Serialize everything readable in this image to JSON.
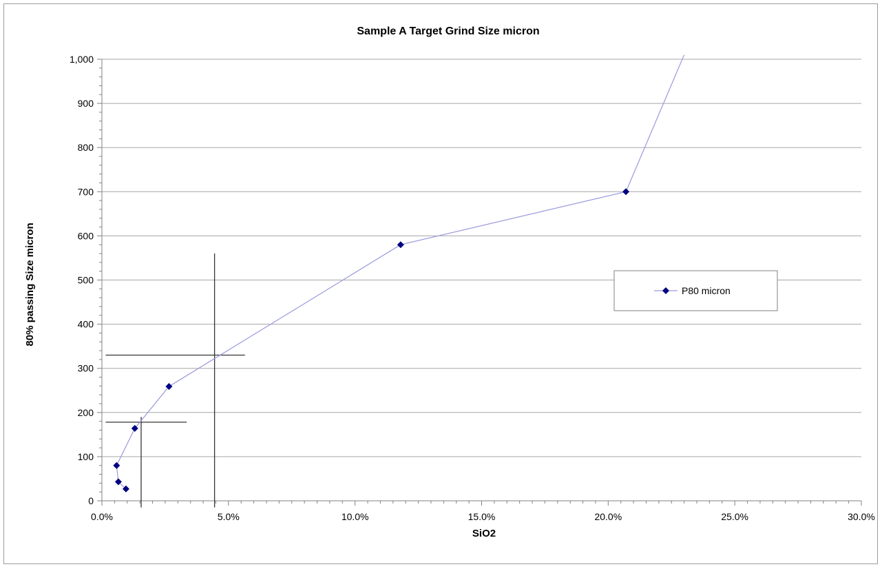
{
  "chart_data": {
    "type": "line",
    "title": "Sample A Target Grind Size micron",
    "xlabel": "SiO2",
    "ylabel": "80% passing Size micron",
    "xlim": [
      0,
      0.3
    ],
    "ylim": [
      0,
      1000
    ],
    "x_ticks": [
      0,
      0.05,
      0.1,
      0.15,
      0.2,
      0.25,
      0.3
    ],
    "x_tick_labels": [
      "0.0%",
      "5.0%",
      "10.0%",
      "15.0%",
      "20.0%",
      "25.0%",
      "30.0%"
    ],
    "y_ticks": [
      0,
      100,
      200,
      300,
      400,
      500,
      600,
      700,
      800,
      900,
      1000
    ],
    "y_tick_labels": [
      "0",
      "100",
      "200",
      "300",
      "400",
      "500",
      "600",
      "700",
      "800",
      "900",
      "1,000"
    ],
    "grid": "horizontal",
    "legend_position": "right",
    "series": [
      {
        "name": "P80 micron",
        "color": "#9999dd",
        "marker_color": "#000080",
        "marker": "diamond",
        "points": [
          {
            "x": 0.0095,
            "y": 27
          },
          {
            "x": 0.0065,
            "y": 43
          },
          {
            "x": 0.0058,
            "y": 80
          },
          {
            "x": 0.013,
            "y": 164
          },
          {
            "x": 0.0265,
            "y": 259
          },
          {
            "x": 0.118,
            "y": 580
          },
          {
            "x": 0.207,
            "y": 700
          }
        ],
        "tail": {
          "x": 0.23,
          "y": 1010
        }
      }
    ],
    "annotation_lines": [
      {
        "x1": 0.0015,
        "y1": 178,
        "x2": 0.0335,
        "y2": 178
      },
      {
        "x1": 0.0155,
        "y1": -15,
        "x2": 0.0155,
        "y2": 190
      },
      {
        "x1": 0.0015,
        "y1": 330,
        "x2": 0.0565,
        "y2": 330
      },
      {
        "x1": 0.0445,
        "y1": -15,
        "x2": 0.0445,
        "y2": 560
      }
    ]
  }
}
